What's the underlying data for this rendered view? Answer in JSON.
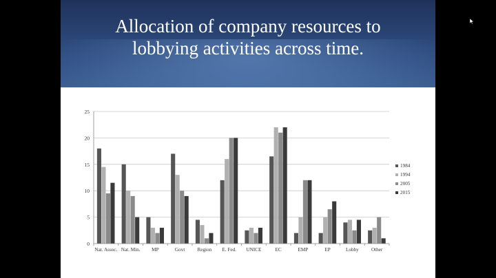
{
  "slide": {
    "title_line1": "Allocation of company resources to",
    "title_line2": "lobbying activities across time."
  },
  "colors": {
    "header_top": "#20325a",
    "header_bottom": "#3c5f95",
    "series": [
      "#555555",
      "#b0b0b0",
      "#8a8a8a",
      "#3a3a3a"
    ]
  },
  "chart_data": {
    "type": "bar",
    "categories": [
      "Nat. Assoc.",
      "Nat. Min.",
      "MP",
      "Govt",
      "Region",
      "E. Fed.",
      "UNICE",
      "EC",
      "EMP",
      "EP",
      "Lobby",
      "Other"
    ],
    "series": [
      {
        "name": "1984",
        "values": [
          18,
          15,
          5,
          17,
          4.5,
          12,
          2.5,
          16.5,
          2,
          2,
          4,
          2.5
        ]
      },
      {
        "name": "1994",
        "values": [
          14.5,
          10,
          3,
          13,
          3.5,
          16,
          3,
          22,
          5,
          5,
          4.5,
          3
        ]
      },
      {
        "name": "2005",
        "values": [
          9.5,
          9,
          2,
          10,
          1,
          20,
          2,
          21,
          12,
          6.5,
          2.5,
          5
        ]
      },
      {
        "name": "2015",
        "values": [
          11.5,
          5,
          3,
          9,
          2,
          20,
          3,
          22,
          12,
          8,
          4.5,
          1
        ]
      }
    ],
    "ylim": [
      0,
      25
    ],
    "yticks": [
      "0",
      "5",
      "10",
      "15",
      "20",
      "25"
    ],
    "grid": true,
    "legend_position": "right"
  }
}
